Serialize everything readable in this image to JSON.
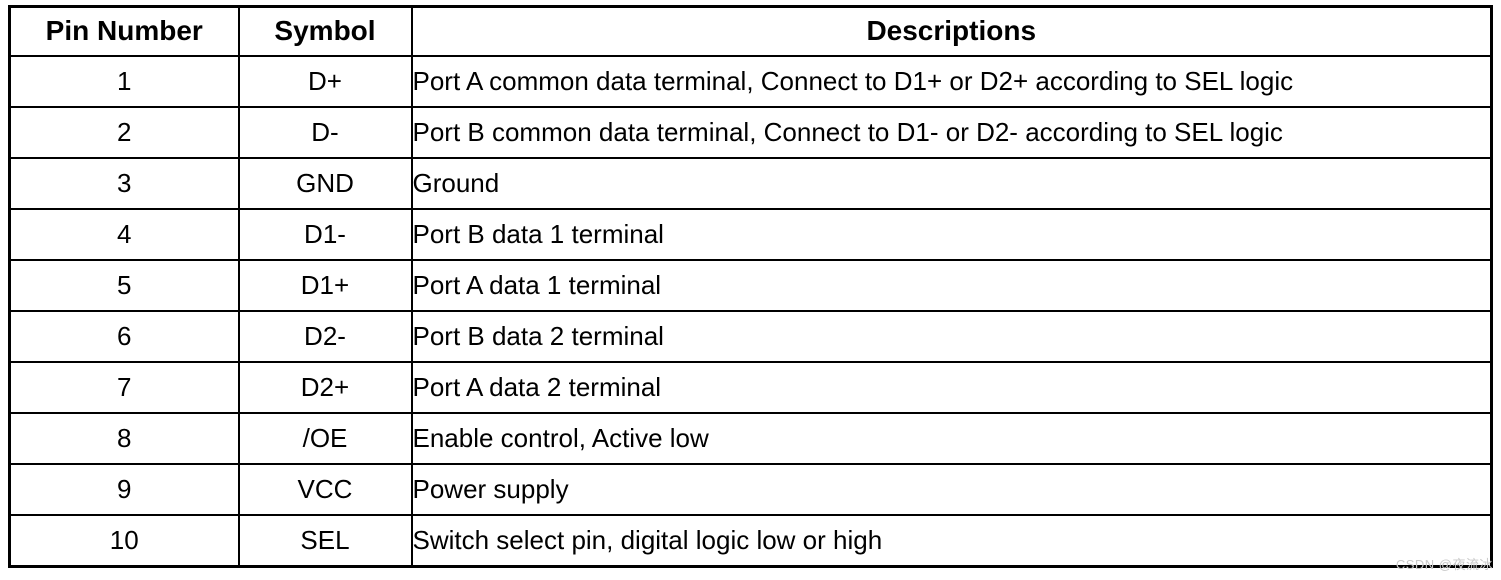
{
  "table": {
    "headers": [
      "Pin Number",
      "Symbol",
      "Descriptions"
    ],
    "rows": [
      {
        "pin": "1",
        "symbol": "D+",
        "description": "Port A common data terminal, Connect to D1+ or D2+ according to SEL logic"
      },
      {
        "pin": "2",
        "symbol": "D-",
        "description": "Port B common data terminal, Connect to D1- or D2- according to SEL logic"
      },
      {
        "pin": "3",
        "symbol": "GND",
        "description": "Ground"
      },
      {
        "pin": "4",
        "symbol": "D1-",
        "description": "Port B data 1 terminal"
      },
      {
        "pin": "5",
        "symbol": "D1+",
        "description": "Port A data 1 terminal"
      },
      {
        "pin": "6",
        "symbol": "D2-",
        "description": "Port B data 2 terminal"
      },
      {
        "pin": "7",
        "symbol": "D2+",
        "description": "Port A data 2 terminal"
      },
      {
        "pin": "8",
        "symbol": "/OE",
        "description": "Enable control, Active low"
      },
      {
        "pin": "9",
        "symbol": "VCC",
        "description": "Power supply"
      },
      {
        "pin": "10",
        "symbol": "SEL",
        "description": "Switch select pin, digital logic low or high"
      }
    ]
  },
  "watermark": "CSDN @夜流冰",
  "colors": {
    "border": "#000000",
    "text": "#000000",
    "background": "#ffffff",
    "watermark_text": "#c9c9c9"
  }
}
